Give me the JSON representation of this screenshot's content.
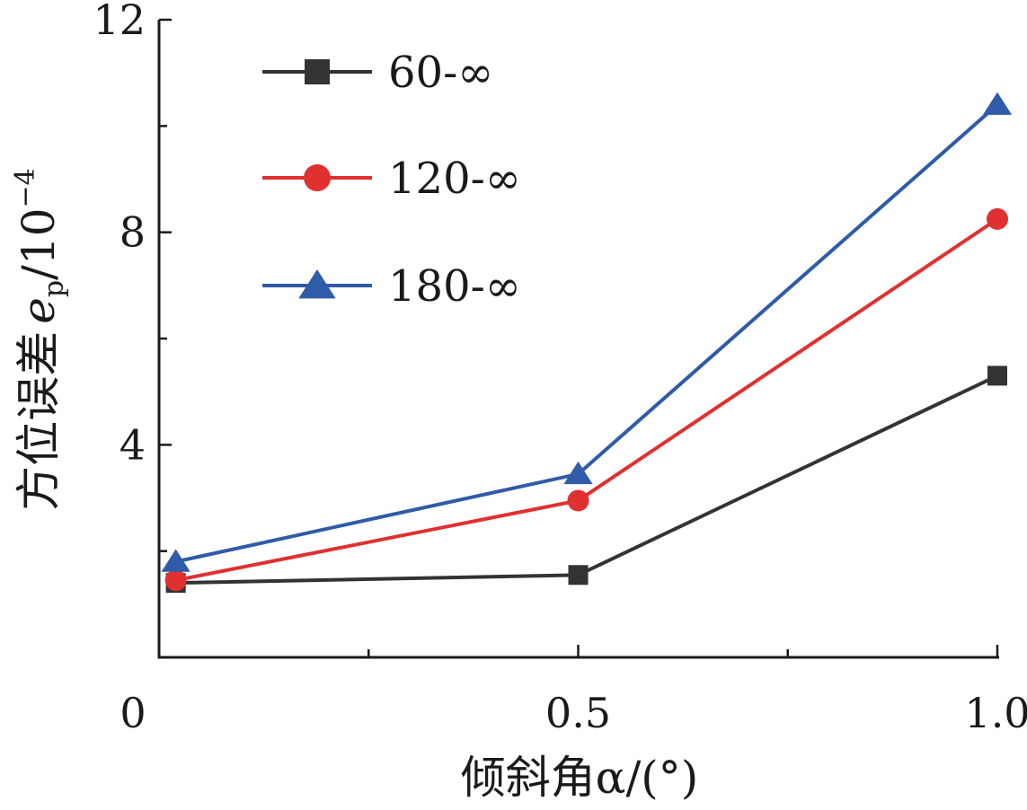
{
  "chart_data": {
    "type": "line",
    "x": [
      0.02,
      0.5,
      1.0
    ],
    "x_ticks": [
      "0",
      "0.5",
      "1.0"
    ],
    "y_ticks": [
      "4",
      "8",
      "12"
    ],
    "xlim": [
      0,
      1.0
    ],
    "ylim": [
      0,
      12
    ],
    "xlabel": "倾斜角α/(°)",
    "ylabel_prefix": "方位误差",
    "ylabel_var": "e",
    "ylabel_sub": "p",
    "ylabel_unit": "/10",
    "ylabel_exp": "−4",
    "legend_position": "top-left",
    "grid": false,
    "series": [
      {
        "name": "60-∞",
        "values": [
          1.4,
          1.55,
          5.3
        ],
        "color": "#333333",
        "marker": "square"
      },
      {
        "name": "120-∞",
        "values": [
          1.45,
          2.95,
          8.25
        ],
        "color": "#e03030",
        "marker": "circle"
      },
      {
        "name": "180-∞",
        "values": [
          1.8,
          3.45,
          10.4
        ],
        "color": "#2f5ba8",
        "marker": "triangle"
      }
    ]
  }
}
